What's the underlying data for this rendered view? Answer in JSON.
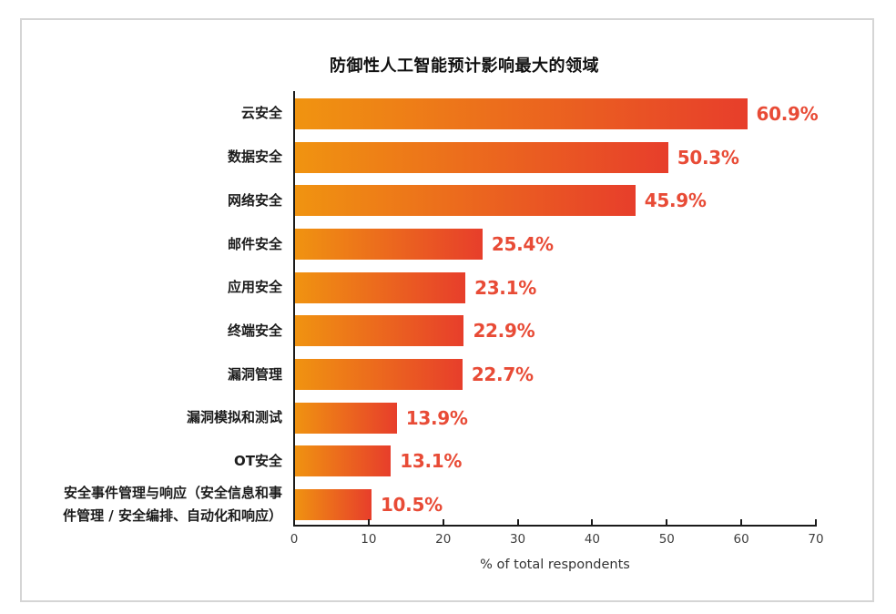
{
  "card": {
    "border_color": "#d5d5d5"
  },
  "chart_data": {
    "type": "bar",
    "orientation": "horizontal",
    "title": "防御性人工智能预计影响最大的领域",
    "categories": [
      "云安全",
      "数据安全",
      "网络安全",
      "邮件安全",
      "应用安全",
      "终端安全",
      "漏洞管理",
      "漏洞模拟和测试",
      "OT安全",
      "安全事件管理与响应（安全信息和事件管理 / 安全编排、自动化和响应）"
    ],
    "values": [
      60.9,
      50.3,
      45.9,
      25.4,
      23.1,
      22.9,
      22.7,
      13.9,
      13.1,
      10.5
    ],
    "value_labels": [
      "60.9%",
      "50.3%",
      "45.9%",
      "25.4%",
      "23.1%",
      "22.9%",
      "22.7%",
      "13.9%",
      "13.1%",
      "10.5%"
    ],
    "xlabel": "% of total respondents",
    "xlim": [
      0,
      70
    ],
    "xticks": [
      0,
      10,
      20,
      30,
      40,
      50,
      60,
      70
    ],
    "grid": false,
    "legend_position": "none",
    "bar_gradient_start": "#f09410",
    "bar_gradient_end": "#e73e2b",
    "value_label_color": "#e84b36"
  }
}
